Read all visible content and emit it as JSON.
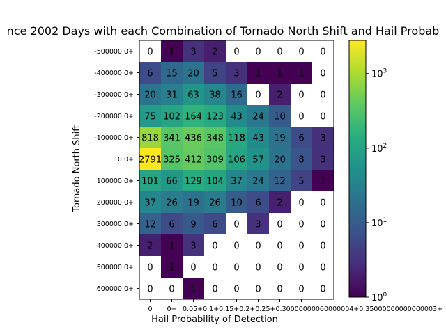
{
  "chart_data": {
    "type": "heatmap",
    "title": "nce 2002 Days with each Combination of Tornado North Shift and Hail Probab",
    "xlabel": "Hail Probability of Detection",
    "ylabel": "Tornado North Shift",
    "x_tick_labels": [
      "0",
      "0+",
      "0.05+",
      "0.1+",
      "0.15+",
      "0.2+",
      "0.25+",
      "0.3+",
      "0.35+"
    ],
    "x_tick_overlap_text": "0.05+0.1+0.15+0.2+0.25+0.30000000000000004+0.35000000000000003+",
    "y_tick_labels": [
      "-500000.0+",
      "-400000.0+",
      "-300000.0+",
      "-200000.0+",
      "-100000.0+",
      "0.0+",
      "100000.0+",
      "200000.0+",
      "300000.0+",
      "400000.0+",
      "500000.0+",
      "600000.0+"
    ],
    "values": [
      [
        0,
        1,
        3,
        2,
        0,
        0,
        0,
        0,
        0
      ],
      [
        6,
        15,
        20,
        5,
        3,
        1,
        1,
        1,
        0
      ],
      [
        20,
        31,
        63,
        38,
        16,
        0,
        2,
        0,
        0
      ],
      [
        75,
        102,
        164,
        123,
        43,
        24,
        10,
        0,
        0
      ],
      [
        818,
        341,
        436,
        348,
        118,
        43,
        19,
        6,
        3
      ],
      [
        2791,
        325,
        412,
        309,
        106,
        57,
        20,
        8,
        3
      ],
      [
        101,
        66,
        129,
        104,
        37,
        24,
        12,
        5,
        1
      ],
      [
        37,
        26,
        19,
        26,
        10,
        6,
        2,
        0,
        0
      ],
      [
        12,
        6,
        9,
        6,
        0,
        3,
        0,
        0,
        0
      ],
      [
        2,
        1,
        3,
        0,
        0,
        0,
        0,
        0,
        0
      ],
      [
        0,
        1,
        0,
        0,
        0,
        0,
        0,
        0,
        0
      ],
      [
        0,
        0,
        1,
        0,
        0,
        0,
        0,
        0,
        0
      ]
    ],
    "color_scale": "log",
    "colormap": "viridis",
    "zero_color": "#ffffff",
    "colorbar": {
      "min": 1,
      "max": 2791,
      "tick_values": [
        1,
        10,
        100,
        1000
      ],
      "tick_labels": [
        "10",
        "10",
        "10",
        "10"
      ],
      "tick_exponents": [
        "0",
        "1",
        "2",
        "3"
      ]
    },
    "grid": false,
    "legend": "none"
  }
}
